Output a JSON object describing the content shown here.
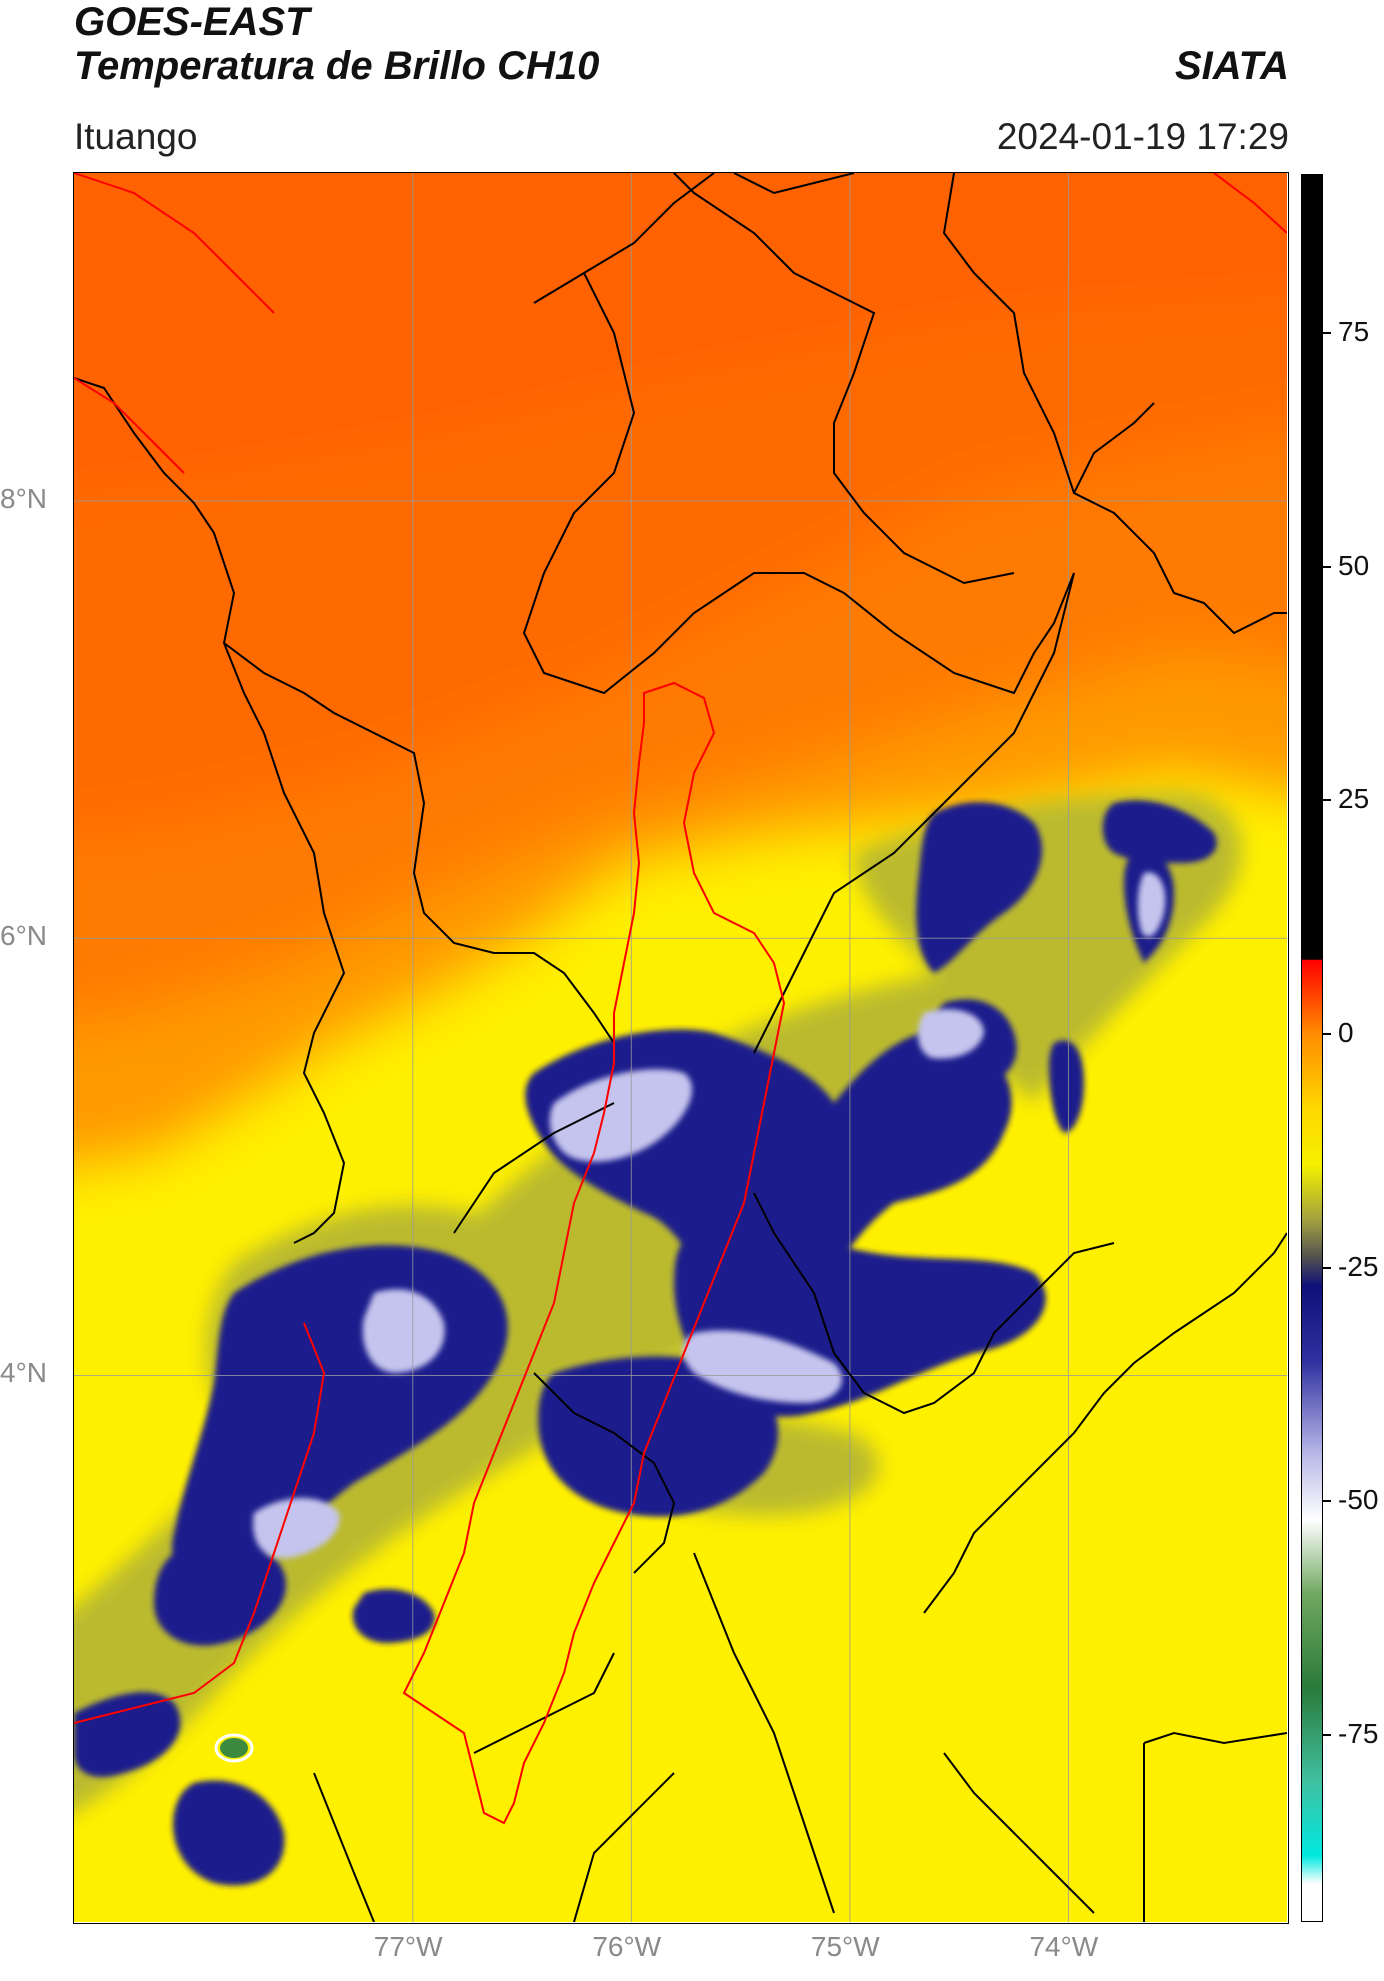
{
  "header": {
    "satellite": "GOES-EAST",
    "product": "Temperatura de Brillo CH10",
    "org": "SIATA",
    "region": "Ituango",
    "datetime": "2024-01-19 17:29"
  },
  "map": {
    "lat_labels": [
      "8°N",
      "6°N",
      "4°N"
    ],
    "lon_labels": [
      "77°W",
      "76°W",
      "75°W",
      "74°W"
    ],
    "lat_values": [
      8,
      6,
      4
    ],
    "lon_values": [
      -77,
      -76,
      -75,
      -74
    ],
    "extent": {
      "lon_min": -78.55,
      "lon_max": -73.0,
      "lat_min": 1.5,
      "lat_max": 9.5
    },
    "colors": {
      "warm_orange": "#ff6a00",
      "orange": "#ff9000",
      "yellow": "#fff000",
      "olive": "#b8b830",
      "navy": "#1a1a8a",
      "lavender": "#c8c8f0",
      "border_black": "#000000",
      "border_red": "#ff0000",
      "grid": "#9a9a9a"
    }
  },
  "colorbar": {
    "tick_labels": [
      "75",
      "50",
      "25",
      "0",
      "-25",
      "-50",
      "-75"
    ],
    "tick_values": [
      75,
      50,
      25,
      0,
      -25,
      -50,
      -75
    ],
    "range": [
      -95,
      92
    ],
    "stops": [
      {
        "value": 92,
        "color": "#000000"
      },
      {
        "value": 8,
        "color": "#000000"
      },
      {
        "value": 7.9,
        "color": "#ff0000"
      },
      {
        "value": 0,
        "color": "#ff8c00"
      },
      {
        "value": -8,
        "color": "#ffd800"
      },
      {
        "value": -14,
        "color": "#f5f000"
      },
      {
        "value": -20,
        "color": "#a0a040"
      },
      {
        "value": -24,
        "color": "#505050"
      },
      {
        "value": -27,
        "color": "#10107a"
      },
      {
        "value": -35,
        "color": "#3030a0"
      },
      {
        "value": -45,
        "color": "#b8b8e8"
      },
      {
        "value": -52,
        "color": "#ffffff"
      },
      {
        "value": -60,
        "color": "#70a860"
      },
      {
        "value": -70,
        "color": "#2a7a3a"
      },
      {
        "value": -80,
        "color": "#40c0a0"
      },
      {
        "value": -88,
        "color": "#00e8e0"
      },
      {
        "value": -91,
        "color": "#ffffff"
      },
      {
        "value": -95,
        "color": "#ffffff"
      }
    ]
  }
}
